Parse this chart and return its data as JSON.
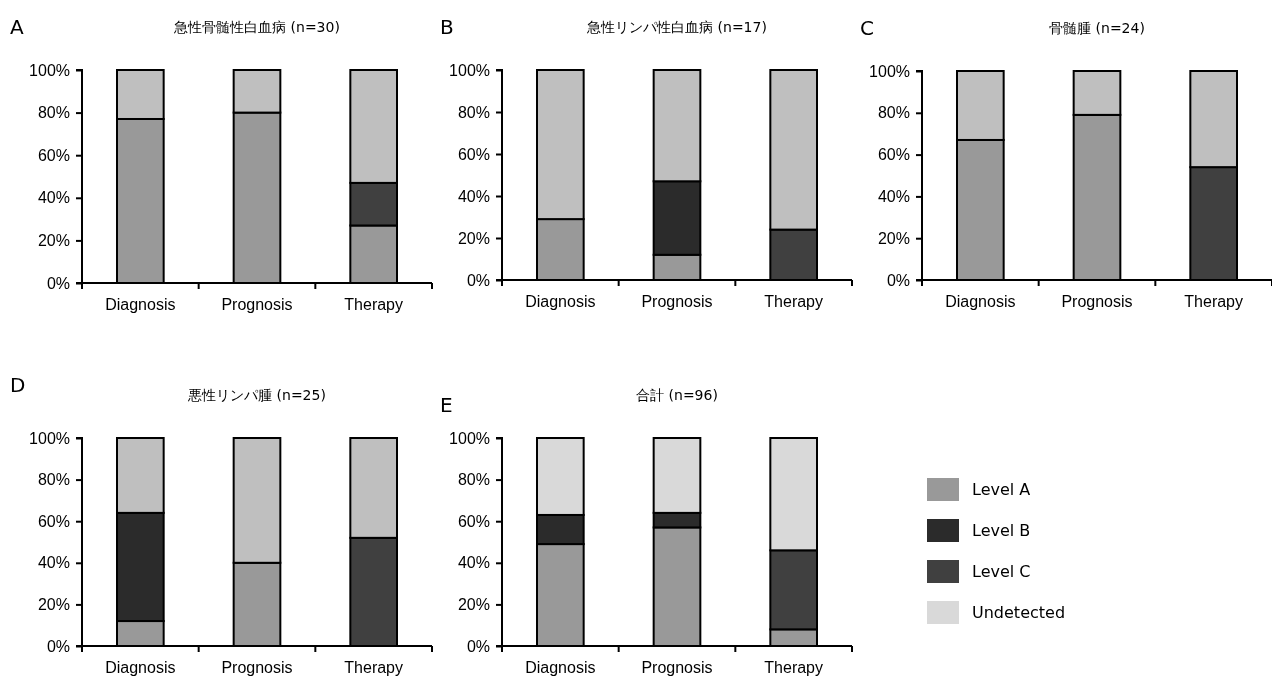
{
  "chart_data": [
    {
      "type": "bar",
      "stacked": true,
      "title": "急性骨髄性白血病 (n=30)",
      "annotations": [
        "A"
      ],
      "categories": [
        "Diagnosis",
        "Prognosis",
        "Therapy"
      ],
      "ylim": [
        0,
        100
      ],
      "yticks": [
        {
          "value": 0,
          "label": "0%"
        },
        {
          "value": 20,
          "label": "20%"
        },
        {
          "value": 40,
          "label": "40%"
        },
        {
          "value": 60,
          "label": "60%"
        },
        {
          "value": 80,
          "label": "80%"
        },
        {
          "value": 100,
          "label": "100%"
        }
      ],
      "grid": false,
      "legend": false,
      "series": [
        {
          "color": "#999999",
          "values": [
            77,
            80,
            27
          ]
        },
        {
          "color": "#404040",
          "values": [
            0,
            0,
            20
          ]
        },
        {
          "color": "#bfbfbf",
          "values": [
            23,
            20,
            53
          ]
        }
      ]
    },
    {
      "type": "bar",
      "stacked": true,
      "title": "急性リンパ性白血病 (n=17)",
      "annotations": [
        "B"
      ],
      "categories": [
        "Diagnosis",
        "Prognosis",
        "Therapy"
      ],
      "ylim": [
        0,
        100
      ],
      "yticks": [
        {
          "value": 0,
          "label": "0%"
        },
        {
          "value": 20,
          "label": "20%"
        },
        {
          "value": 40,
          "label": "40%"
        },
        {
          "value": 60,
          "label": "60%"
        },
        {
          "value": 80,
          "label": "80%"
        },
        {
          "value": 100,
          "label": "100%"
        }
      ],
      "grid": false,
      "legend": false,
      "series": [
        {
          "color": "#999999",
          "values": [
            29,
            12,
            0
          ]
        },
        {
          "color": "#2b2b2b",
          "values": [
            0,
            35,
            0
          ]
        },
        {
          "color": "#404040",
          "values": [
            0,
            0,
            24
          ]
        },
        {
          "color": "#bfbfbf",
          "values": [
            71,
            53,
            76
          ]
        }
      ]
    },
    {
      "type": "bar",
      "stacked": true,
      "title": "骨髄腫 (n=24)",
      "annotations": [
        "C"
      ],
      "categories": [
        "Diagnosis",
        "Prognosis",
        "Therapy"
      ],
      "ylim": [
        0,
        100
      ],
      "yticks": [
        {
          "value": 0,
          "label": "0%"
        },
        {
          "value": 20,
          "label": "20%"
        },
        {
          "value": 40,
          "label": "40%"
        },
        {
          "value": 60,
          "label": "60%"
        },
        {
          "value": 80,
          "label": "80%"
        },
        {
          "value": 100,
          "label": "100%"
        }
      ],
      "grid": false,
      "legend": false,
      "series": [
        {
          "color": "#999999",
          "values": [
            67,
            79,
            0
          ]
        },
        {
          "color": "#404040",
          "values": [
            0,
            0,
            54
          ]
        },
        {
          "color": "#bfbfbf",
          "values": [
            33,
            21,
            46
          ]
        }
      ]
    },
    {
      "type": "bar",
      "stacked": true,
      "title": "悪性リンパ腫 (n=25)",
      "annotations": [
        "D"
      ],
      "categories": [
        "Diagnosis",
        "Prognosis",
        "Therapy"
      ],
      "ylim": [
        0,
        100
      ],
      "yticks": [
        {
          "value": 0,
          "label": "0%"
        },
        {
          "value": 20,
          "label": "20%"
        },
        {
          "value": 40,
          "label": "40%"
        },
        {
          "value": 60,
          "label": "60%"
        },
        {
          "value": 80,
          "label": "80%"
        },
        {
          "value": 100,
          "label": "100%"
        }
      ],
      "grid": false,
      "legend": false,
      "series": [
        {
          "color": "#999999",
          "values": [
            12,
            40,
            0
          ]
        },
        {
          "color": "#2b2b2b",
          "values": [
            52,
            0,
            0
          ]
        },
        {
          "color": "#404040",
          "values": [
            0,
            0,
            52
          ]
        },
        {
          "color": "#bfbfbf",
          "values": [
            36,
            60,
            48
          ]
        }
      ]
    },
    {
      "type": "bar",
      "stacked": true,
      "title": "合計 (n=96)",
      "annotations": [
        "E"
      ],
      "categories": [
        "Diagnosis",
        "Prognosis",
        "Therapy"
      ],
      "ylim": [
        0,
        100
      ],
      "yticks": [
        {
          "value": 0,
          "label": "0%"
        },
        {
          "value": 20,
          "label": "20%"
        },
        {
          "value": 40,
          "label": "40%"
        },
        {
          "value": 60,
          "label": "60%"
        },
        {
          "value": 80,
          "label": "80%"
        },
        {
          "value": 100,
          "label": "100%"
        }
      ],
      "grid": false,
      "legend": "right",
      "series": [
        {
          "name": "Level A",
          "color": "#999999",
          "values": [
            49,
            57,
            8
          ]
        },
        {
          "name": "Level B",
          "color": "#2b2b2b",
          "values": [
            14,
            7,
            0
          ]
        },
        {
          "name": "Level C",
          "color": "#404040",
          "values": [
            0,
            0,
            38
          ]
        },
        {
          "name": "Undetected",
          "color": "#d9d9d9",
          "values": [
            37,
            36,
            54
          ]
        }
      ]
    }
  ]
}
